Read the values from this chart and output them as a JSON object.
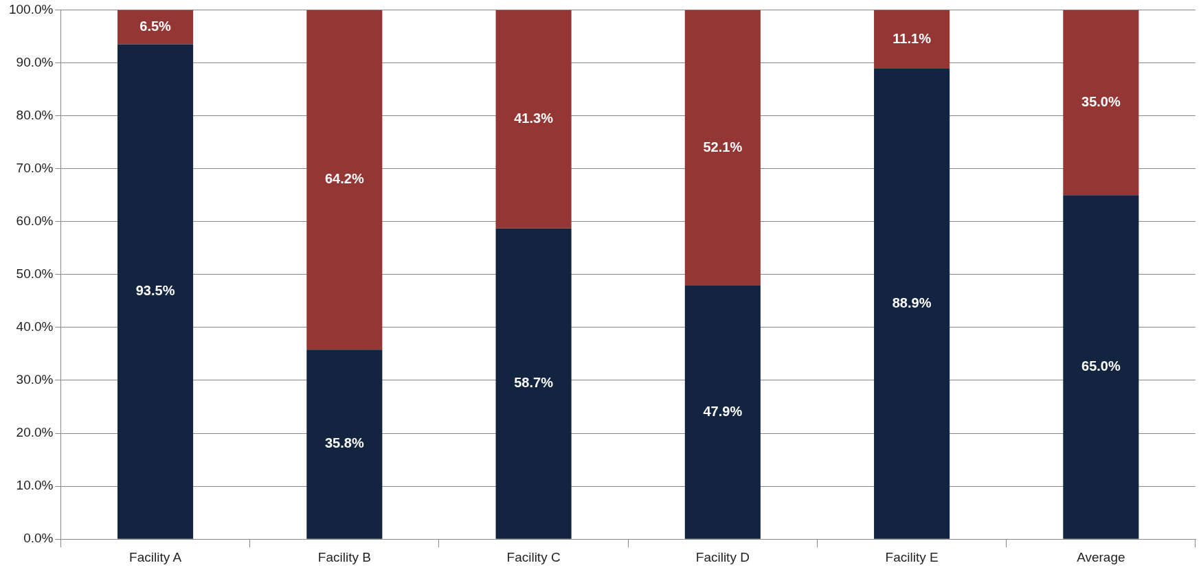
{
  "chart_data": {
    "type": "bar",
    "stacked": true,
    "categories": [
      "Facility A",
      "Facility B",
      "Facility C",
      "Facility D",
      "Facility E",
      "Average"
    ],
    "series": [
      {
        "color": "#12243f",
        "values": [
          93.5,
          35.8,
          58.7,
          47.9,
          88.9,
          65.0
        ],
        "value_labels": [
          "93.5%",
          "35.8%",
          "58.7%",
          "47.9%",
          "88.9%",
          "65.0%"
        ]
      },
      {
        "color": "#943634",
        "values": [
          6.5,
          64.2,
          41.3,
          52.1,
          11.1,
          35.0
        ],
        "value_labels": [
          "6.5%",
          "64.2%",
          "41.3%",
          "52.1%",
          "11.1%",
          "35.0%"
        ]
      }
    ],
    "ylim": [
      0,
      100
    ],
    "yticks": [
      {
        "value": 0,
        "label": "0.0%"
      },
      {
        "value": 10,
        "label": "10.0%"
      },
      {
        "value": 20,
        "label": "20.0%"
      },
      {
        "value": 30,
        "label": "30.0%"
      },
      {
        "value": 40,
        "label": "40.0%"
      },
      {
        "value": 50,
        "label": "50.0%"
      },
      {
        "value": 60,
        "label": "60.0%"
      },
      {
        "value": 70,
        "label": "70.0%"
      },
      {
        "value": 80,
        "label": "80.0%"
      },
      {
        "value": 90,
        "label": "90.0%"
      },
      {
        "value": 100,
        "label": "100.0%"
      }
    ],
    "grid": "y",
    "legend": false
  }
}
